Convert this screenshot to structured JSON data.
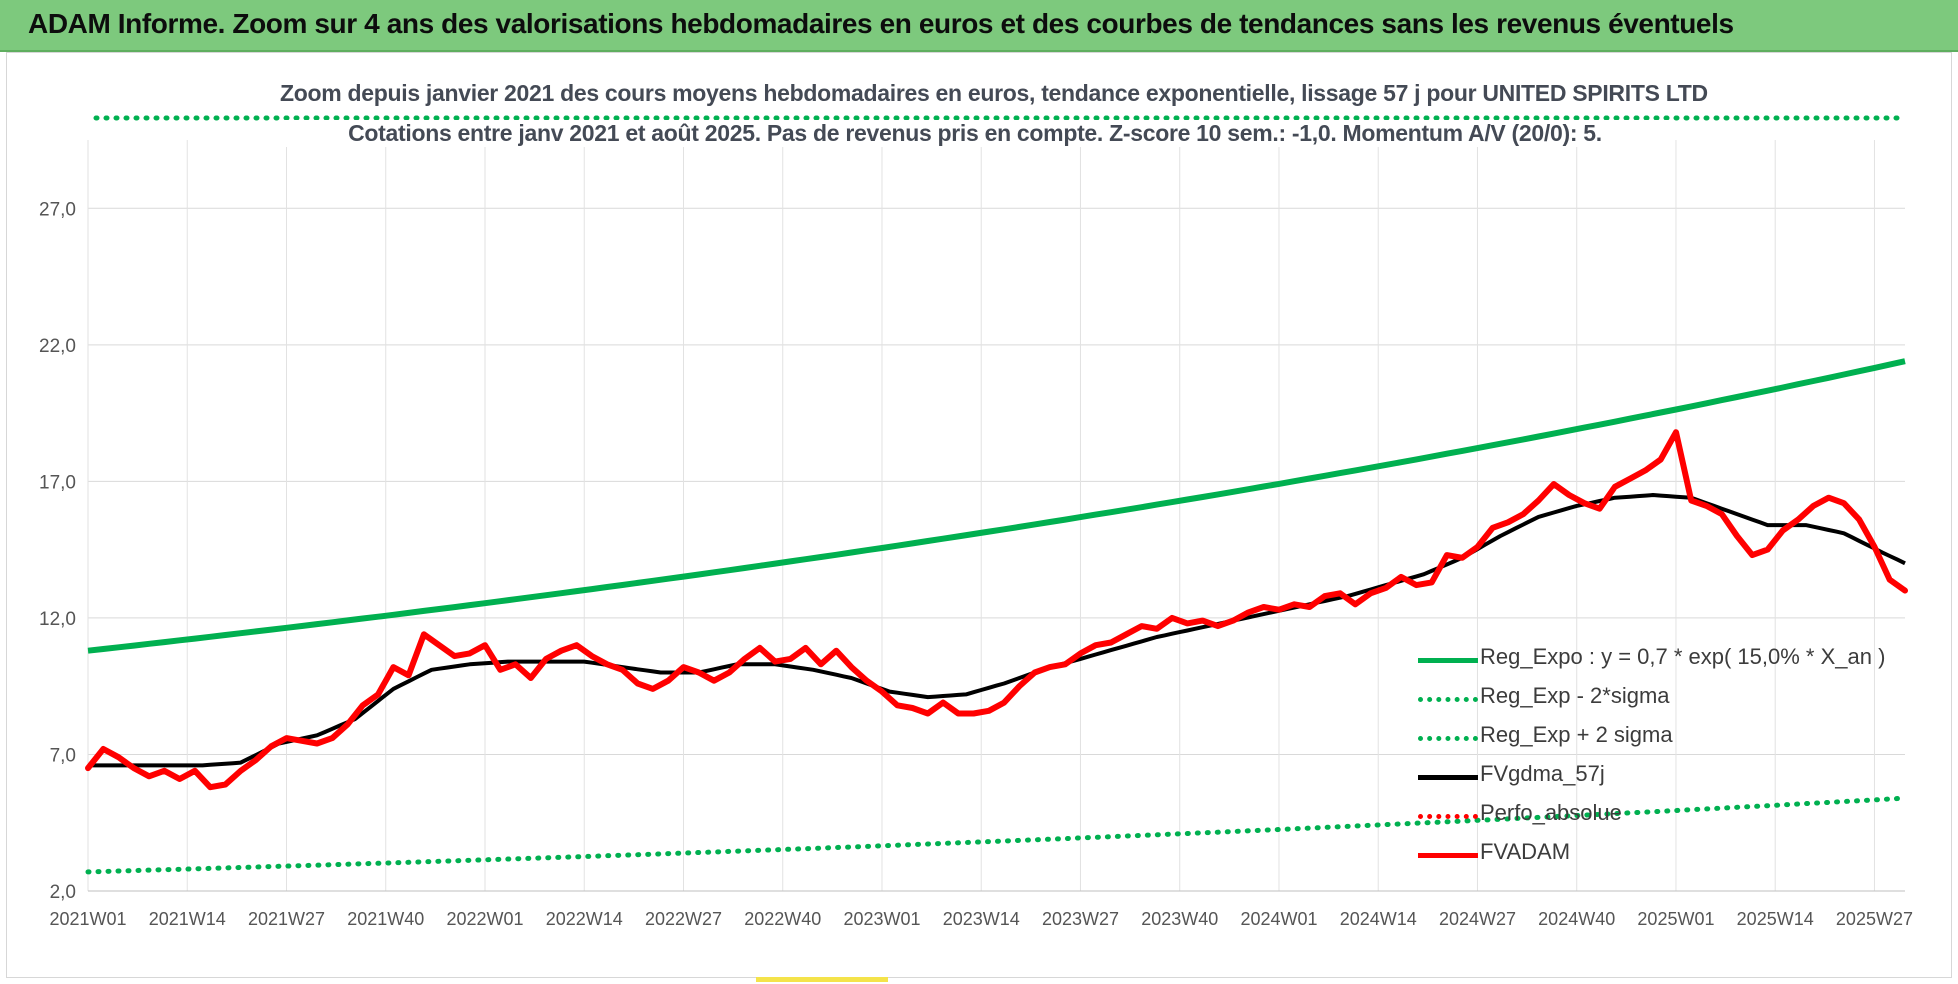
{
  "header": {
    "title": "ADAM Informe. Zoom sur 4 ans des valorisations hebdomadaires en euros et des courbes de tendances sans les revenus éventuels"
  },
  "chart_data": {
    "type": "line",
    "title": "Zoom depuis janvier 2021 des cours moyens hebdomadaires en euros, tendance exponentielle, lissage 57 j pour UNITED SPIRITS LTD",
    "subtitle": "Cotations entre janv 2021 et août 2025.  Pas de revenus pris en compte. Z-score 10 sem.: -1,0. Momentum A/V (20/0): 5.",
    "xlabel": "",
    "ylabel": "",
    "ylim": [
      2.0,
      29.5
    ],
    "yticks": [
      "2,0",
      "7,0",
      "12,0",
      "17,0",
      "22,0",
      "27,0"
    ],
    "ytick_values": [
      2,
      7,
      12,
      17,
      22,
      27
    ],
    "x_tick_labels": [
      "2021W01",
      "2021W14",
      "2021W27",
      "2021W40",
      "2022W01",
      "2022W14",
      "2022W27",
      "2022W40",
      "2023W01",
      "2023W14",
      "2023W27",
      "2023W40",
      "2024W01",
      "2024W14",
      "2024W27",
      "2024W40",
      "2025W01",
      "2025W14",
      "2025W27"
    ],
    "x_tick_index": [
      0,
      13,
      26,
      39,
      52,
      65,
      78,
      91,
      104,
      117,
      130,
      143,
      156,
      169,
      182,
      195,
      208,
      221,
      234
    ],
    "n_weeks": 239,
    "grid": true,
    "legend_position": "bottom-right",
    "series": [
      {
        "name": "Reg_Expo : y = 0,7 * exp( 15,0% *  X_an )",
        "color": "#00b050",
        "style": "solid",
        "x": [
          0,
          238
        ],
        "values": [
          10.8,
          21.4
        ],
        "exp_rate": 0.15
      },
      {
        "name": "Reg_Exp - 2*sigma",
        "color": "#00b050",
        "style": "dotted",
        "x": [
          0,
          238
        ],
        "values": [
          2.7,
          5.4
        ],
        "exp_rate": 0.15
      },
      {
        "name": "Reg_Exp + 2 sigma",
        "color": "#00b050",
        "style": "dotted",
        "values": [
          29.5
        ]
      },
      {
        "name": "FVgdma_57j",
        "color": "#000000",
        "style": "solid",
        "x": [
          0,
          5,
          10,
          15,
          20,
          25,
          30,
          35,
          40,
          45,
          50,
          55,
          60,
          65,
          70,
          75,
          80,
          85,
          90,
          95,
          100,
          105,
          110,
          115,
          120,
          125,
          130,
          135,
          140,
          145,
          150,
          155,
          160,
          165,
          170,
          175,
          180,
          185,
          190,
          195,
          200,
          205,
          210,
          215,
          220,
          225,
          230,
          235,
          238
        ],
        "values": [
          6.6,
          6.6,
          6.6,
          6.6,
          6.7,
          7.4,
          7.7,
          8.3,
          9.4,
          10.1,
          10.3,
          10.4,
          10.4,
          10.4,
          10.2,
          10.0,
          10.0,
          10.3,
          10.3,
          10.1,
          9.8,
          9.3,
          9.1,
          9.2,
          9.6,
          10.1,
          10.5,
          10.9,
          11.3,
          11.6,
          11.9,
          12.2,
          12.5,
          12.8,
          13.2,
          13.6,
          14.2,
          15.0,
          15.7,
          16.1,
          16.4,
          16.5,
          16.4,
          15.9,
          15.4,
          15.4,
          15.1,
          14.4,
          14.0
        ]
      },
      {
        "name": "Perfo_absolue",
        "color": "#ff0000",
        "style": "dotted",
        "values": []
      },
      {
        "name": "FVADAM",
        "color": "#ff0000",
        "style": "solid",
        "x": [
          0,
          2,
          4,
          6,
          8,
          10,
          12,
          14,
          16,
          18,
          20,
          22,
          24,
          26,
          28,
          30,
          32,
          34,
          36,
          38,
          40,
          42,
          44,
          46,
          48,
          50,
          52,
          54,
          56,
          58,
          60,
          62,
          64,
          66,
          68,
          70,
          72,
          74,
          76,
          78,
          80,
          82,
          84,
          86,
          88,
          90,
          92,
          94,
          96,
          98,
          100,
          102,
          104,
          106,
          108,
          110,
          112,
          114,
          116,
          118,
          120,
          122,
          124,
          126,
          128,
          130,
          132,
          134,
          136,
          138,
          140,
          142,
          144,
          146,
          148,
          150,
          152,
          154,
          156,
          158,
          160,
          162,
          164,
          166,
          168,
          170,
          172,
          174,
          176,
          178,
          180,
          182,
          184,
          186,
          188,
          190,
          192,
          194,
          196,
          198,
          200,
          202,
          204,
          206,
          208,
          210,
          212,
          214,
          216,
          218,
          220,
          222,
          224,
          226,
          228,
          230,
          232,
          234,
          236,
          238
        ],
        "values": [
          6.5,
          7.2,
          6.9,
          6.5,
          6.2,
          6.4,
          6.1,
          6.4,
          5.8,
          5.9,
          6.4,
          6.8,
          7.3,
          7.6,
          7.5,
          7.4,
          7.6,
          8.1,
          8.8,
          9.2,
          10.2,
          9.9,
          11.4,
          11.0,
          10.6,
          10.7,
          11.0,
          10.1,
          10.3,
          9.8,
          10.5,
          10.8,
          11.0,
          10.6,
          10.3,
          10.1,
          9.6,
          9.4,
          9.7,
          10.2,
          10.0,
          9.7,
          10.0,
          10.5,
          10.9,
          10.4,
          10.5,
          10.9,
          10.3,
          10.8,
          10.2,
          9.7,
          9.3,
          8.8,
          8.7,
          8.5,
          8.9,
          8.5,
          8.5,
          8.6,
          8.9,
          9.5,
          10.0,
          10.2,
          10.3,
          10.7,
          11.0,
          11.1,
          11.4,
          11.7,
          11.6,
          12.0,
          11.8,
          11.9,
          11.7,
          11.9,
          12.2,
          12.4,
          12.3,
          12.5,
          12.4,
          12.8,
          12.9,
          12.5,
          12.9,
          13.1,
          13.5,
          13.2,
          13.3,
          14.3,
          14.2,
          14.6,
          15.3,
          15.5,
          15.8,
          16.3,
          16.9,
          16.5,
          16.2,
          16.0,
          16.8,
          17.1,
          17.4,
          17.8,
          18.8,
          16.3,
          16.1,
          15.8,
          15.0,
          14.3,
          14.5,
          15.2,
          15.6,
          16.1,
          16.4,
          16.2,
          15.6,
          14.6,
          13.4,
          13.0
        ]
      }
    ]
  },
  "legend": {
    "items": [
      {
        "label": "Reg_Expo : y = 0,7 * exp( 15,0% *  X_an )",
        "color": "#00b050",
        "style": "solid"
      },
      {
        "label": "Reg_Exp - 2*sigma",
        "color": "#00b050",
        "style": "dotted"
      },
      {
        "label": "Reg_Exp + 2 sigma",
        "color": "#00b050",
        "style": "dotted"
      },
      {
        "label": "FVgdma_57j",
        "color": "#000000",
        "style": "solid"
      },
      {
        "label": "Perfo_absolue",
        "color": "#ff0000",
        "style": "dotted"
      },
      {
        "label": "FVADAM",
        "color": "#ff0000",
        "style": "solid"
      }
    ]
  }
}
